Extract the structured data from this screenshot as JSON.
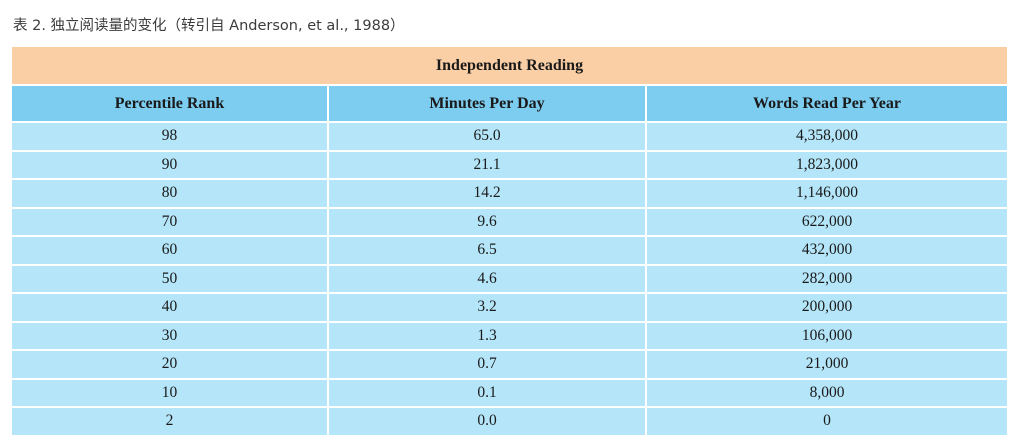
{
  "caption": "表 2. 独立阅读量的变化（转引自 Anderson, et al., 1988）",
  "table": {
    "title": "Independent Reading",
    "columns": [
      "Percentile Rank",
      "Minutes Per Day",
      "Words Read Per Year"
    ],
    "rows": [
      [
        "98",
        "65.0",
        "4,358,000"
      ],
      [
        "90",
        "21.1",
        "1,823,000"
      ],
      [
        "80",
        "14.2",
        "1,146,000"
      ],
      [
        "70",
        "9.6",
        "622,000"
      ],
      [
        "60",
        "6.5",
        "432,000"
      ],
      [
        "50",
        "4.6",
        "282,000"
      ],
      [
        "40",
        "3.2",
        "200,000"
      ],
      [
        "30",
        "1.3",
        "106,000"
      ],
      [
        "20",
        "0.7",
        "21,000"
      ],
      [
        "10",
        "0.1",
        "8,000"
      ],
      [
        "2",
        "0.0",
        "0"
      ]
    ]
  },
  "colors": {
    "title_band": "#fbcfa5",
    "header_band": "#7dcdf1",
    "row_band": "#b4e5f8"
  }
}
